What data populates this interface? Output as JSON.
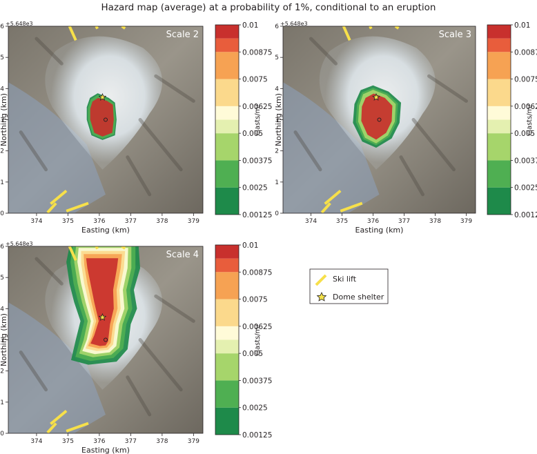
{
  "title": "Hazard map (average) at a probability of 1%, conditional to an eruption",
  "colors": {
    "background": "#ffffff",
    "terrain_dark": "#6f6a60",
    "terrain_mid": "#9c978c",
    "snow": "#e8eef2",
    "ski_lift": "#f7e04a",
    "shelter_star": "#f5e34a",
    "class_colors": [
      "#1e8a4a",
      "#4faf52",
      "#a6d56b",
      "#e4f0b0",
      "#fffbd8",
      "#fbd98c",
      "#f6a253",
      "#e85d3c",
      "#c8302d"
    ]
  },
  "chart_data": [
    {
      "type": "heatmap",
      "panel_label": "Scale 2",
      "xlabel": "Easting (km)",
      "ylabel": "Northing (km)",
      "y_offset_label": "+5.648e3",
      "xlim": [
        373.1,
        379.3
      ],
      "ylim": [
        0,
        6
      ],
      "xticks": [
        374,
        375,
        376,
        377,
        378,
        379
      ],
      "yticks": [
        0,
        1,
        2,
        3,
        4,
        5,
        6
      ],
      "vent": [
        376.2,
        3.0
      ],
      "shelter": [
        376.1,
        3.72
      ],
      "regions": [
        {
          "level": 0.001875,
          "polygon": [
            [
              375.7,
              3.7
            ],
            [
              375.95,
              3.85
            ],
            [
              376.3,
              3.7
            ],
            [
              376.5,
              3.55
            ],
            [
              376.55,
              3.0
            ],
            [
              376.5,
              2.5
            ],
            [
              376.1,
              2.35
            ],
            [
              375.75,
              2.5
            ],
            [
              375.6,
              3.0
            ],
            [
              375.6,
              3.4
            ]
          ]
        },
        {
          "level": 0.003125,
          "polygon": [
            [
              375.73,
              3.65
            ],
            [
              375.95,
              3.8
            ],
            [
              376.28,
              3.66
            ],
            [
              376.47,
              3.52
            ],
            [
              376.52,
              3.0
            ],
            [
              376.47,
              2.53
            ],
            [
              376.1,
              2.39
            ],
            [
              375.78,
              2.53
            ],
            [
              375.64,
              3.0
            ],
            [
              375.64,
              3.38
            ]
          ]
        },
        {
          "level": 0.009375,
          "polygon": [
            [
              375.78,
              3.58
            ],
            [
              375.96,
              3.7
            ],
            [
              376.25,
              3.6
            ],
            [
              376.43,
              3.48
            ],
            [
              376.46,
              3.0
            ],
            [
              376.41,
              2.58
            ],
            [
              376.1,
              2.46
            ],
            [
              375.84,
              2.58
            ],
            [
              375.71,
              3.0
            ],
            [
              375.71,
              3.35
            ]
          ]
        }
      ]
    },
    {
      "type": "heatmap",
      "panel_label": "Scale 3",
      "xlabel": "Easting (km)",
      "ylabel": "Northing (km)",
      "y_offset_label": "+5.648e3",
      "xlim": [
        373.1,
        379.3
      ],
      "ylim": [
        0,
        6
      ],
      "xticks": [
        374,
        375,
        376,
        377,
        378,
        379
      ],
      "yticks": [
        0,
        1,
        2,
        3,
        4,
        5,
        6
      ],
      "vent": [
        376.2,
        3.0
      ],
      "shelter": [
        376.1,
        3.72
      ],
      "regions": [
        {
          "level": 0.001875,
          "polygon": [
            [
              375.6,
              3.95
            ],
            [
              376.0,
              4.1
            ],
            [
              376.5,
              3.9
            ],
            [
              376.9,
              3.55
            ],
            [
              376.85,
              2.9
            ],
            [
              376.6,
              2.4
            ],
            [
              376.1,
              2.1
            ],
            [
              375.65,
              2.3
            ],
            [
              375.35,
              2.9
            ],
            [
              375.4,
              3.5
            ]
          ]
        },
        {
          "level": 0.003125,
          "polygon": [
            [
              375.65,
              3.88
            ],
            [
              376.0,
              4.02
            ],
            [
              376.47,
              3.84
            ],
            [
              376.8,
              3.52
            ],
            [
              376.76,
              2.92
            ],
            [
              376.53,
              2.45
            ],
            [
              376.1,
              2.18
            ],
            [
              375.7,
              2.37
            ],
            [
              375.45,
              2.92
            ],
            [
              375.48,
              3.48
            ]
          ]
        },
        {
          "level": 0.004375,
          "polygon": [
            [
              375.68,
              3.82
            ],
            [
              376.0,
              3.96
            ],
            [
              376.43,
              3.79
            ],
            [
              376.73,
              3.5
            ],
            [
              376.7,
              2.94
            ],
            [
              376.48,
              2.5
            ],
            [
              376.1,
              2.24
            ],
            [
              375.74,
              2.42
            ],
            [
              375.52,
              2.94
            ],
            [
              375.55,
              3.45
            ]
          ]
        },
        {
          "level": 0.009375,
          "polygon": [
            [
              375.76,
              3.7
            ],
            [
              376.02,
              3.84
            ],
            [
              376.38,
              3.7
            ],
            [
              376.62,
              3.45
            ],
            [
              376.6,
              2.95
            ],
            [
              376.42,
              2.58
            ],
            [
              376.1,
              2.36
            ],
            [
              375.82,
              2.52
            ],
            [
              375.62,
              2.96
            ],
            [
              375.64,
              3.42
            ]
          ]
        }
      ]
    },
    {
      "type": "heatmap",
      "panel_label": "Scale 4",
      "xlabel": "Easting (km)",
      "ylabel": "Northing (km)",
      "y_offset_label": "+5.648e3",
      "xlim": [
        373.1,
        379.3
      ],
      "ylim": [
        0,
        6
      ],
      "xticks": [
        374,
        375,
        376,
        377,
        378,
        379
      ],
      "yticks": [
        0,
        1,
        2,
        3,
        4,
        5,
        6
      ],
      "vent": [
        376.2,
        3.0
      ],
      "shelter": [
        376.1,
        3.72
      ],
      "regions": [
        {
          "level": 0.001875,
          "polygon": [
            [
              375.05,
              6.0
            ],
            [
              377.25,
              6.0
            ],
            [
              377.3,
              5.3
            ],
            [
              377.1,
              4.6
            ],
            [
              377.2,
              4.0
            ],
            [
              377.0,
              3.5
            ],
            [
              376.9,
              2.7
            ],
            [
              376.55,
              2.3
            ],
            [
              375.65,
              2.2
            ],
            [
              375.1,
              2.35
            ],
            [
              375.25,
              3.0
            ],
            [
              375.4,
              3.6
            ],
            [
              375.2,
              4.2
            ],
            [
              375.05,
              4.8
            ],
            [
              374.95,
              5.5
            ]
          ]
        },
        {
          "level": 0.003125,
          "polygon": [
            [
              375.15,
              6.0
            ],
            [
              377.15,
              6.0
            ],
            [
              377.15,
              5.3
            ],
            [
              376.98,
              4.6
            ],
            [
              377.05,
              4.0
            ],
            [
              376.86,
              3.5
            ],
            [
              376.76,
              2.72
            ],
            [
              376.45,
              2.42
            ],
            [
              375.72,
              2.32
            ],
            [
              375.24,
              2.45
            ],
            [
              375.38,
              3.0
            ],
            [
              375.52,
              3.6
            ],
            [
              375.33,
              4.2
            ],
            [
              375.18,
              4.8
            ],
            [
              375.08,
              5.5
            ]
          ]
        },
        {
          "level": 0.004375,
          "polygon": [
            [
              375.26,
              6.0
            ],
            [
              377.02,
              6.0
            ],
            [
              377.02,
              5.3
            ],
            [
              376.86,
              4.6
            ],
            [
              376.92,
              4.0
            ],
            [
              376.74,
              3.5
            ],
            [
              376.64,
              2.75
            ],
            [
              376.38,
              2.52
            ],
            [
              375.8,
              2.44
            ],
            [
              375.36,
              2.56
            ],
            [
              375.5,
              3.0
            ],
            [
              375.63,
              3.6
            ],
            [
              375.45,
              4.2
            ],
            [
              375.31,
              4.8
            ],
            [
              375.2,
              5.5
            ]
          ]
        },
        {
          "level": 0.005625,
          "polygon": [
            [
              375.34,
              5.95
            ],
            [
              376.92,
              5.95
            ],
            [
              376.9,
              5.3
            ],
            [
              376.75,
              4.6
            ],
            [
              376.8,
              4.0
            ],
            [
              376.63,
              3.5
            ],
            [
              376.54,
              2.8
            ],
            [
              376.33,
              2.6
            ],
            [
              375.86,
              2.54
            ],
            [
              375.46,
              2.64
            ],
            [
              375.6,
              3.0
            ],
            [
              375.73,
              3.6
            ],
            [
              375.56,
              4.2
            ],
            [
              375.42,
              4.8
            ],
            [
              375.3,
              5.5
            ]
          ]
        },
        {
          "level": 0.006875,
          "polygon": [
            [
              375.42,
              5.85
            ],
            [
              376.82,
              5.85
            ],
            [
              376.78,
              5.3
            ],
            [
              376.64,
              4.6
            ],
            [
              376.68,
              4.0
            ],
            [
              376.52,
              3.5
            ],
            [
              376.44,
              2.85
            ],
            [
              376.28,
              2.68
            ],
            [
              375.92,
              2.64
            ],
            [
              375.56,
              2.72
            ],
            [
              375.68,
              3.05
            ],
            [
              375.82,
              3.6
            ],
            [
              375.66,
              4.2
            ],
            [
              375.52,
              4.8
            ],
            [
              375.42,
              5.45
            ]
          ]
        },
        {
          "level": 0.008125,
          "polygon": [
            [
              375.5,
              5.75
            ],
            [
              376.72,
              5.75
            ],
            [
              376.68,
              5.3
            ],
            [
              376.55,
              4.6
            ],
            [
              376.58,
              4.0
            ],
            [
              376.44,
              3.5
            ],
            [
              376.36,
              2.9
            ],
            [
              376.24,
              2.75
            ],
            [
              375.98,
              2.72
            ],
            [
              375.64,
              2.8
            ],
            [
              375.76,
              3.1
            ],
            [
              375.9,
              3.6
            ],
            [
              375.75,
              4.2
            ],
            [
              375.62,
              4.8
            ],
            [
              375.52,
              5.4
            ]
          ]
        },
        {
          "level": 0.009375,
          "polygon": [
            [
              375.58,
              5.62
            ],
            [
              376.6,
              5.62
            ],
            [
              376.56,
              5.3
            ],
            [
              376.44,
              4.6
            ],
            [
              376.46,
              4.0
            ],
            [
              376.34,
              3.5
            ],
            [
              376.28,
              2.95
            ],
            [
              376.2,
              2.82
            ],
            [
              376.02,
              2.8
            ],
            [
              375.72,
              2.88
            ],
            [
              375.84,
              3.15
            ],
            [
              375.98,
              3.6
            ],
            [
              375.84,
              4.2
            ],
            [
              375.72,
              4.8
            ],
            [
              375.62,
              5.3
            ]
          ]
        }
      ]
    }
  ],
  "colorbar": {
    "unit_label": "clasts/m²",
    "ticks": [
      "0.01",
      "0.00875",
      "0.0075",
      "0.00625",
      "0.005",
      "0.00375",
      "0.0025",
      "0.00125"
    ],
    "tick_values": [
      0.01,
      0.00875,
      0.0075,
      0.00625,
      0.005,
      0.00375,
      0.0025,
      0.00125
    ],
    "class_bounds": [
      0.00125,
      0.0025,
      0.00375,
      0.005,
      0.005625,
      0.00625,
      0.0075,
      0.00875,
      0.009375,
      0.01
    ]
  },
  "ski_lifts": [
    [
      [
        374.45,
        0.3
      ],
      [
        374.95,
        0.72
      ]
    ],
    [
      [
        374.35,
        0.02
      ],
      [
        374.62,
        0.32
      ]
    ],
    [
      [
        374.95,
        0.07
      ],
      [
        375.65,
        0.32
      ]
    ],
    [
      [
        375.05,
        6.0
      ],
      [
        375.25,
        5.55
      ]
    ],
    [
      [
        375.9,
        6.0
      ],
      [
        375.94,
        5.92
      ]
    ],
    [
      [
        376.72,
        6.0
      ],
      [
        376.82,
        5.93
      ]
    ]
  ],
  "legend": {
    "ski_lift_label": "Ski lift",
    "shelter_label": "Dome shelter"
  }
}
